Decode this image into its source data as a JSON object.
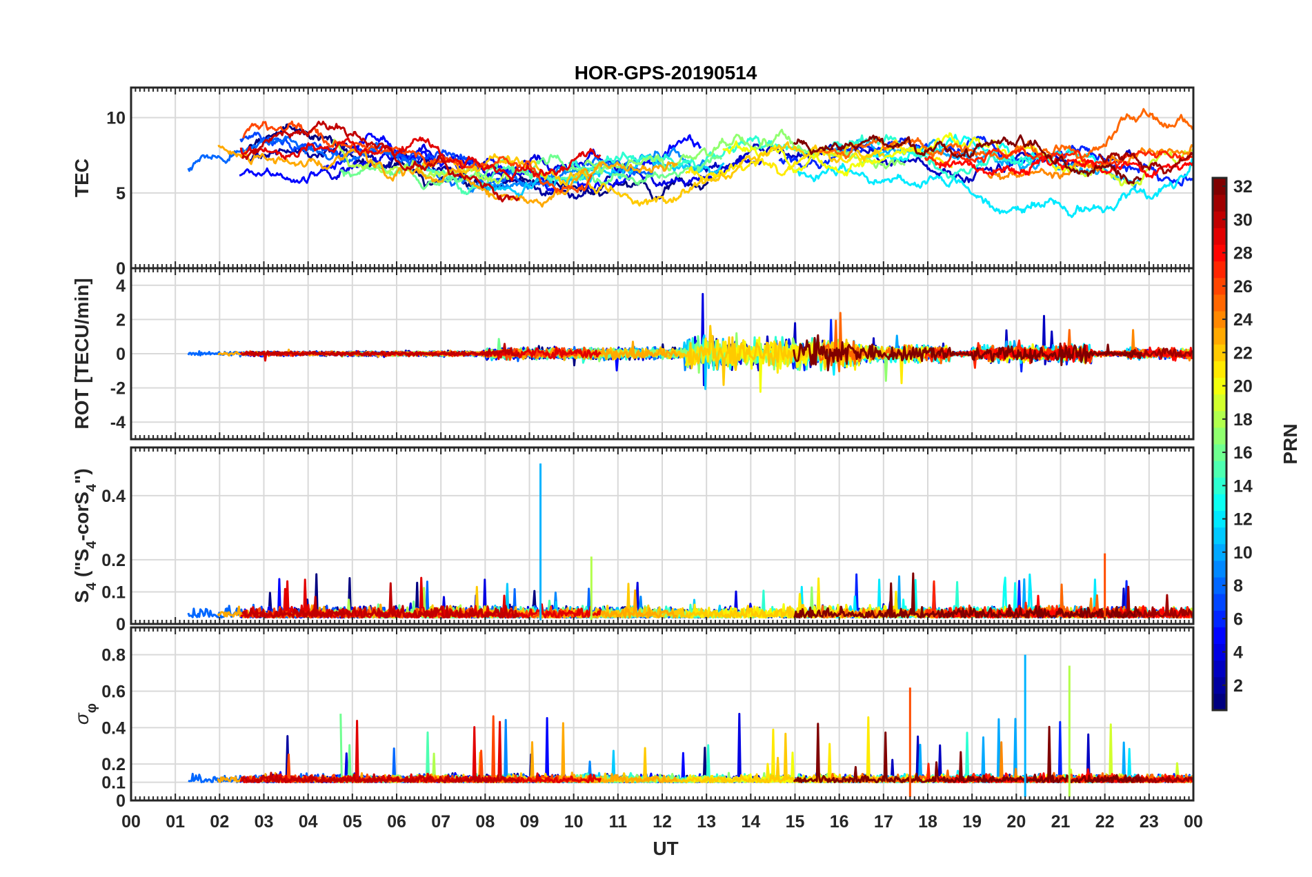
{
  "chart_data": {
    "type": "line",
    "title": "HOR-GPS-20190514",
    "xlabel": "UT",
    "xlim": [
      0,
      24
    ],
    "x_tick_labels": [
      "00",
      "01",
      "02",
      "03",
      "04",
      "05",
      "06",
      "07",
      "08",
      "09",
      "10",
      "11",
      "12",
      "13",
      "14",
      "15",
      "16",
      "17",
      "18",
      "19",
      "20",
      "21",
      "22",
      "23",
      "00"
    ],
    "panels": [
      {
        "id": "tec",
        "ylabel": "TEC",
        "ylim": [
          0,
          12
        ],
        "y_ticks": [
          0,
          5,
          10
        ],
        "typical_range": [
          4,
          12
        ]
      },
      {
        "id": "rot",
        "ylabel": "ROT [TECU/min]",
        "ylim": [
          -5,
          5
        ],
        "y_ticks": [
          -4,
          -2,
          0,
          2,
          4
        ],
        "typical_range": [
          -5,
          4.5
        ]
      },
      {
        "id": "s4",
        "ylabel_parts": [
          "S",
          "4",
          " (\"S",
          "4",
          "-corS",
          "4",
          "\")"
        ],
        "ylim": [
          0,
          0.55
        ],
        "y_ticks": [
          0,
          0.1,
          0.2,
          0.4
        ],
        "peaks": [
          {
            "x": 9.25,
            "y": 0.5
          },
          {
            "x": 10.4,
            "y": 0.21
          },
          {
            "x": 22.0,
            "y": 0.22
          }
        ]
      },
      {
        "id": "sigma",
        "ylabel_parts": [
          "σ",
          "φ"
        ],
        "ylim": [
          0,
          0.95
        ],
        "y_ticks": [
          0,
          0.1,
          0.2,
          0.4,
          0.6,
          0.8
        ],
        "peaks": [
          {
            "x": 20.2,
            "y": 0.8
          },
          {
            "x": 21.2,
            "y": 0.74
          },
          {
            "x": 17.6,
            "y": 0.62
          }
        ]
      }
    ],
    "colorbar": {
      "label": "PRN",
      "range": [
        1,
        32
      ],
      "ticks": [
        2,
        4,
        6,
        8,
        10,
        12,
        14,
        16,
        18,
        20,
        22,
        24,
        26,
        28,
        30,
        32
      ],
      "colormap": "jet"
    },
    "series_count": 32
  }
}
